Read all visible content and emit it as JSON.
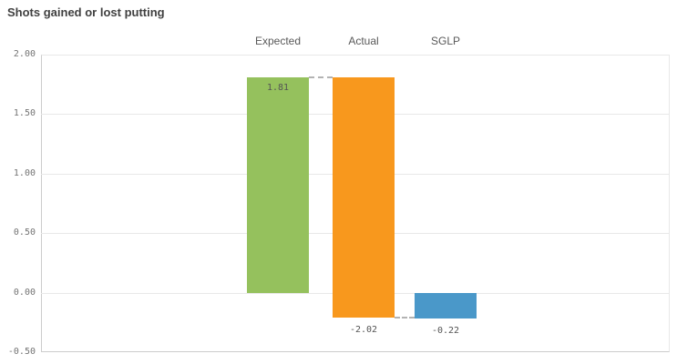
{
  "title": "Shots gained or lost putting",
  "chart_data": {
    "type": "waterfall",
    "title": "Shots gained or lost putting",
    "categories": [
      "Expected",
      "Actual",
      "SGLP"
    ],
    "y_tick_labels": [
      "2.00",
      "1.50",
      "1.00",
      "0.50",
      "0.00",
      "-0.50"
    ],
    "y_ticks": [
      2.0,
      1.5,
      1.0,
      0.5,
      0.0,
      -0.5
    ],
    "ylim": [
      -0.5,
      2.0
    ],
    "grid": true,
    "legend": "none",
    "bars": [
      {
        "category": "Expected",
        "value": 1.81,
        "start": 0.0,
        "end": 1.81,
        "value_label": "1.81",
        "value_label_position": "inside-top",
        "color": "#95c15d"
      },
      {
        "category": "Actual",
        "value": -2.02,
        "start": 1.81,
        "end": -0.21,
        "value_label": "-2.02",
        "value_label_position": "below",
        "color": "#f8981d"
      },
      {
        "category": "SGLP",
        "value": -0.22,
        "start": 0.0,
        "end": -0.22,
        "value_label": "-0.22",
        "value_label_position": "below",
        "color": "#4a98c9"
      }
    ],
    "connectors": [
      {
        "at_value": 1.81,
        "from_bar": 0,
        "to_bar": 1
      },
      {
        "at_value": -0.21,
        "from_bar": 1,
        "to_bar": 2
      }
    ]
  }
}
